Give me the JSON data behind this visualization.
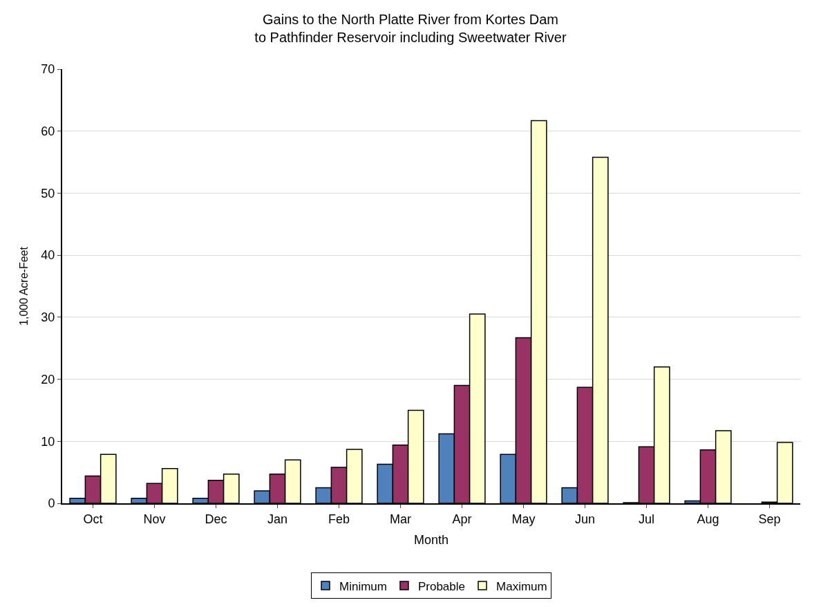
{
  "chart_data": {
    "type": "bar",
    "title": "Gains to the North Platte River from Kortes Dam\nto Pathfinder Reservoir including Sweetwater River",
    "xlabel": "Month",
    "ylabel": "1,000 Acre-Feet",
    "categories": [
      "Oct",
      "Nov",
      "Dec",
      "Jan",
      "Feb",
      "Mar",
      "Apr",
      "May",
      "Jun",
      "Jul",
      "Aug",
      "Sep"
    ],
    "series": [
      {
        "name": "Minimum",
        "color": "#4f81bd",
        "values": [
          0.8,
          0.8,
          0.8,
          2.0,
          2.5,
          6.3,
          11.2,
          7.9,
          2.5,
          0.1,
          0.4,
          0.0
        ]
      },
      {
        "name": "Probable",
        "color": "#993366",
        "values": [
          4.4,
          3.2,
          3.7,
          4.7,
          5.8,
          9.4,
          19.0,
          26.7,
          18.7,
          9.1,
          8.6,
          0.2
        ]
      },
      {
        "name": "Maximum",
        "color": "#ffffcc",
        "values": [
          7.9,
          5.6,
          4.7,
          7.0,
          8.7,
          15.0,
          30.5,
          61.7,
          55.8,
          22.0,
          11.7,
          9.8
        ]
      }
    ],
    "ylim": [
      0,
      70
    ],
    "yticks": [
      0,
      10,
      20,
      30,
      40,
      50,
      60,
      70
    ],
    "grid": "y",
    "legend": "bottom"
  }
}
